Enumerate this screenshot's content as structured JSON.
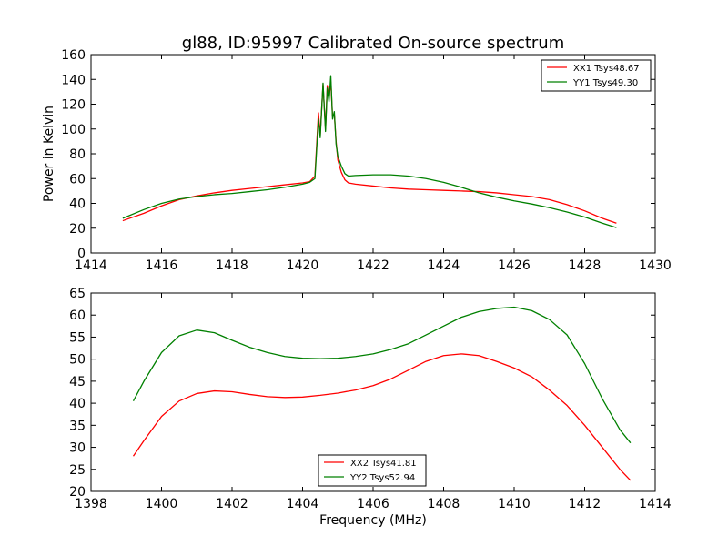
{
  "chart_data": [
    {
      "type": "line",
      "title": "gl88, ID:95997 Calibrated On-source spectrum",
      "xlabel": "",
      "ylabel": "Power in Kelvin",
      "xlim": [
        1414,
        1430
      ],
      "ylim": [
        0,
        160
      ],
      "xticks": [
        "1414",
        "1416",
        "1418",
        "1420",
        "1422",
        "1424",
        "1426",
        "1428",
        "1430"
      ],
      "yticks": [
        "0",
        "20",
        "40",
        "60",
        "80",
        "100",
        "120",
        "140",
        "160"
      ],
      "legend_position": "top-right",
      "series": [
        {
          "name": "XX1 Tsys48.67",
          "color": "#ff0000",
          "x": [
            1414.9,
            1415.5,
            1416,
            1416.5,
            1417,
            1417.5,
            1418,
            1418.5,
            1419,
            1419.5,
            1420,
            1420.2,
            1420.35,
            1420.45,
            1420.5,
            1420.58,
            1420.65,
            1420.7,
            1420.75,
            1420.8,
            1420.85,
            1420.9,
            1420.95,
            1421,
            1421.1,
            1421.2,
            1421.3,
            1421.5,
            1422,
            1422.5,
            1423,
            1423.5,
            1424,
            1424.5,
            1425,
            1425.5,
            1426,
            1426.5,
            1427,
            1427.5,
            1428,
            1428.5,
            1428.9
          ],
          "values": [
            26,
            32,
            38,
            43,
            46,
            48.5,
            50.5,
            52,
            53.5,
            55,
            56.5,
            57.5,
            62,
            113,
            95,
            136,
            100,
            135,
            125,
            138,
            110,
            112,
            90,
            75,
            65,
            59,
            56.5,
            55.5,
            54,
            52.5,
            51.5,
            51,
            50.5,
            50,
            49.5,
            48.5,
            47,
            45.5,
            43,
            39,
            34,
            28,
            24
          ]
        },
        {
          "name": "YY1 Tsys49.30",
          "color": "#008000",
          "x": [
            1414.9,
            1415.5,
            1416,
            1416.5,
            1417,
            1417.5,
            1418,
            1418.5,
            1419,
            1419.5,
            1420,
            1420.2,
            1420.35,
            1420.45,
            1420.5,
            1420.58,
            1420.65,
            1420.7,
            1420.75,
            1420.8,
            1420.85,
            1420.9,
            1420.95,
            1421,
            1421.1,
            1421.2,
            1421.3,
            1421.5,
            1422,
            1422.5,
            1423,
            1423.5,
            1424,
            1424.5,
            1425,
            1425.5,
            1426,
            1426.5,
            1427,
            1427.5,
            1428,
            1428.5,
            1428.9
          ],
          "values": [
            28,
            35,
            40,
            43.5,
            45.5,
            47,
            48,
            49.5,
            51,
            53,
            55.5,
            57,
            60,
            108,
            93,
            137,
            98,
            133,
            122,
            143,
            108,
            114,
            88,
            78,
            70,
            64,
            62,
            62.5,
            63,
            63,
            62,
            60,
            57,
            53,
            48.5,
            45,
            42,
            39.5,
            36.5,
            33,
            29,
            24,
            20.5
          ]
        }
      ]
    },
    {
      "type": "line",
      "title": "",
      "xlabel": "Frequency (MHz)",
      "ylabel": "",
      "xlim": [
        1398,
        1414
      ],
      "ylim": [
        20,
        65
      ],
      "xticks": [
        "1398",
        "1400",
        "1402",
        "1404",
        "1406",
        "1408",
        "1410",
        "1412",
        "1414"
      ],
      "yticks": [
        "20",
        "25",
        "30",
        "35",
        "40",
        "45",
        "50",
        "55",
        "60",
        "65"
      ],
      "legend_position": "bottom-center",
      "series": [
        {
          "name": "XX2 Tsys41.81",
          "color": "#ff0000",
          "x": [
            1399.2,
            1399.5,
            1400,
            1400.5,
            1401,
            1401.5,
            1402,
            1402.5,
            1403,
            1403.5,
            1404,
            1404.5,
            1405,
            1405.5,
            1406,
            1406.5,
            1407,
            1407.5,
            1408,
            1408.5,
            1409,
            1409.5,
            1410,
            1410.5,
            1411,
            1411.5,
            1412,
            1412.5,
            1413,
            1413.3
          ],
          "values": [
            28,
            31.5,
            37,
            40.5,
            42.2,
            42.8,
            42.6,
            42,
            41.5,
            41.3,
            41.4,
            41.8,
            42.3,
            43,
            44,
            45.5,
            47.5,
            49.5,
            50.8,
            51.2,
            50.8,
            49.5,
            48,
            46,
            43,
            39.5,
            35,
            30,
            25,
            22.5
          ]
        },
        {
          "name": "YY2 Tsys52.94",
          "color": "#008000",
          "x": [
            1399.2,
            1399.5,
            1400,
            1400.5,
            1401,
            1401.5,
            1402,
            1402.5,
            1403,
            1403.5,
            1404,
            1404.5,
            1405,
            1405.5,
            1406,
            1406.5,
            1407,
            1407.5,
            1408,
            1408.5,
            1409,
            1409.5,
            1410,
            1410.5,
            1411,
            1411.5,
            1412,
            1412.5,
            1413,
            1413.3
          ],
          "values": [
            40.5,
            45,
            51.5,
            55.3,
            56.6,
            56,
            54.3,
            52.7,
            51.5,
            50.6,
            50.2,
            50.1,
            50.2,
            50.6,
            51.2,
            52.2,
            53.5,
            55.5,
            57.5,
            59.5,
            60.8,
            61.5,
            61.8,
            61,
            59,
            55.5,
            49,
            41,
            34,
            31
          ]
        }
      ]
    }
  ]
}
